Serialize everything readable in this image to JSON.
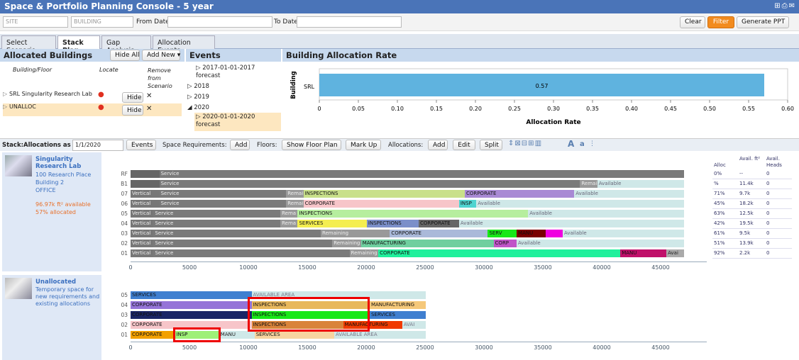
{
  "window": {
    "title": "Space & Portfolio Planning Console - 5 year"
  },
  "filters": {
    "site_placeholder": "SITE",
    "building_placeholder": "BUILDING",
    "from_label": "From Date:",
    "to_label": "To Date:",
    "clear": "Clear",
    "filter": "Filter",
    "ppt": "Generate PPT"
  },
  "tabs": [
    "Select Scenario",
    "Stack Plan",
    "Gap Analysis",
    "Allocation Events"
  ],
  "allocated": {
    "title": "Allocated Buildings",
    "hide_all": "Hide All",
    "add_new": "Add New ▾",
    "col_building": "Building/Floor",
    "col_locate": "Locate",
    "col_remove": "Remove from Scenario",
    "rows": [
      {
        "name": "SRL Singularity Research Lab",
        "hide": "Hide"
      },
      {
        "name": "UNALLOC",
        "hide": "Hide"
      }
    ]
  },
  "events": {
    "title": "Events",
    "items": [
      "2017-01-01-2017 forecast",
      "2018",
      "2019",
      "2020",
      "2020-01-01-2020 forecast"
    ]
  },
  "rate": {
    "title": "Building Allocation Rate",
    "ylabel": "Building",
    "xlabel": "Allocation Rate",
    "category": "SRL",
    "value_label": "0.57",
    "ticks": [
      "0",
      "0.05",
      "0.10",
      "0.15",
      "0.20",
      "0.25",
      "0.30",
      "0.35",
      "0.40",
      "0.45",
      "0.50",
      "0.55",
      "0.60"
    ]
  },
  "chart_data": {
    "type": "bar",
    "categories": [
      "SRL"
    ],
    "values": [
      0.57
    ],
    "title": "Building Allocation Rate",
    "xlabel": "Allocation Rate",
    "ylabel": "Building",
    "xlim": [
      0,
      0.6
    ]
  },
  "stackbar": {
    "label": "Stack:Allocations as of:",
    "date": "1/1/2020",
    "events": "Events",
    "space_req": "Space Requirements:",
    "add": "Add",
    "floors": "Floors:",
    "show_floor_plan": "Show Floor Plan",
    "mark_up": "Mark Up",
    "allocations": "Allocations:",
    "alloc_add": "Add",
    "edit": "Edit",
    "split": "Split",
    "font_a_big": "A",
    "font_a_small": "a"
  },
  "srl": {
    "name": "Singularity Research Lab",
    "address1": "100 Research Place",
    "address2": "Building 2",
    "type": "OFFICE",
    "available": "96.97k ft² available",
    "allocated": "57% allocated"
  },
  "unalloc": {
    "name": "Unallocated",
    "desc": "Temporary space for new requirements and existing allocations"
  },
  "axis_ticks": [
    "0",
    "5000",
    "10000",
    "15000",
    "20000",
    "25000",
    "30000",
    "35000",
    "40000",
    "45000"
  ],
  "axis_ticks_u": [
    "0",
    "5000",
    "10000",
    "15000",
    "20000",
    "25000",
    "30000",
    "35000",
    "40000",
    "45000"
  ],
  "right_headers": {
    "alloc": "Alloc",
    "avail_ft": "Avail. ft²",
    "avail_heads": "Avail. Heads"
  },
  "right_rows": [
    [
      "0%",
      "--",
      "0"
    ],
    [
      "%",
      "11.4k",
      "0"
    ],
    [
      "71%",
      "9.7k",
      "0"
    ],
    [
      "45%",
      "18.2k",
      "0"
    ],
    [
      "63%",
      "12.5k",
      "0"
    ],
    [
      "42%",
      "19.5k",
      "0"
    ],
    [
      "61%",
      "9.5k",
      "0"
    ],
    [
      "51%",
      "13.9k",
      "0"
    ],
    [
      "92%",
      "2.2k",
      "0"
    ]
  ],
  "floors": [
    {
      "label": "RF",
      "segs": [
        [
          "#666",
          "",
          0,
          5,
          "#fff"
        ],
        [
          "#7a7a7a",
          "Service",
          5,
          96,
          "#eee"
        ]
      ]
    },
    {
      "label": "B1",
      "segs": [
        [
          "#666",
          "",
          0,
          5,
          "#fff"
        ],
        [
          "#7a7a7a",
          "Service",
          5,
          78,
          "#eee"
        ],
        [
          "#999",
          "Remai",
          78,
          81,
          "#eee"
        ],
        [
          "#cfe8e8",
          "Available",
          81,
          96,
          "#667"
        ]
      ]
    },
    {
      "label": "07",
      "segs": [
        [
          "#777",
          "Vertical",
          0,
          5,
          "#eee"
        ],
        [
          "#7a7a7a",
          "Service",
          5,
          27,
          "#eee"
        ],
        [
          "#999",
          "Remai",
          27,
          30,
          "#eee"
        ],
        [
          "#c9e08a",
          "INSPECTIONS",
          30,
          58,
          "#111"
        ],
        [
          "#a889d4",
          "CORPORATE",
          58,
          77,
          "#111"
        ],
        [
          "#cfe8e8",
          "Available",
          77,
          96,
          "#667"
        ]
      ]
    },
    {
      "label": "06",
      "segs": [
        [
          "#777",
          "Vertical",
          0,
          5,
          "#eee"
        ],
        [
          "#7a7a7a",
          "Service",
          5,
          27,
          "#eee"
        ],
        [
          "#999",
          "Remai",
          27,
          30,
          "#eee"
        ],
        [
          "#f7c5c9",
          "CORPORATE",
          30,
          57,
          "#111"
        ],
        [
          "#4fd4d0",
          "INSP",
          57,
          60,
          "#111"
        ],
        [
          "#cfe8e8",
          "Available",
          60,
          96,
          "#667"
        ]
      ]
    },
    {
      "label": "05",
      "segs": [
        [
          "#777",
          "Vertical",
          0,
          4,
          "#eee"
        ],
        [
          "#7a7a7a",
          "Service",
          4,
          26,
          "#eee"
        ],
        [
          "#999",
          "Rema",
          26,
          29,
          "#eee"
        ],
        [
          "#b6ee9e",
          "INSPECTIONS",
          29,
          69,
          "#111"
        ],
        [
          "#cfe8e8",
          "Available",
          69,
          96,
          "#667"
        ]
      ]
    },
    {
      "label": "04",
      "segs": [
        [
          "#777",
          "Vertical",
          0,
          4,
          "#eee"
        ],
        [
          "#7a7a7a",
          "Service",
          4,
          26,
          "#eee"
        ],
        [
          "#999",
          "Rema",
          26,
          29,
          "#eee"
        ],
        [
          "#f4ee50",
          "SERVICES",
          29,
          41,
          "#111"
        ],
        [
          "#7b8fc9",
          "INSPECTIONS",
          41,
          50,
          "#111"
        ],
        [
          "#666",
          "CORPORATE",
          50,
          57,
          "#111"
        ],
        [
          "#cfe8e8",
          "Available",
          57,
          96,
          "#667"
        ]
      ]
    },
    {
      "label": "03",
      "segs": [
        [
          "#777",
          "Vertical",
          0,
          4,
          "#eee"
        ],
        [
          "#7a7a7a",
          "Service",
          4,
          33,
          "#eee"
        ],
        [
          "#999",
          "Remaining",
          33,
          45,
          "#eee"
        ],
        [
          "#aab9d9",
          "CORPORATE",
          45,
          62,
          "#111"
        ],
        [
          "#18e818",
          "SERV",
          62,
          67,
          "#111"
        ],
        [
          "#7a0000",
          "MANU",
          67,
          72,
          "#111"
        ],
        [
          "#f000e0",
          "",
          72,
          75,
          "#111"
        ],
        [
          "#cfe8e8",
          "Available",
          75,
          96,
          "#667"
        ]
      ]
    },
    {
      "label": "02",
      "segs": [
        [
          "#777",
          "Vertical",
          0,
          4,
          "#eee"
        ],
        [
          "#7a7a7a",
          "Service",
          4,
          35,
          "#eee"
        ],
        [
          "#999",
          "Remaining",
          35,
          40,
          "#eee"
        ],
        [
          "#6fcf9f",
          "MANUFACTURING",
          40,
          63,
          "#111"
        ],
        [
          "#c054c8",
          "CORP",
          63,
          67,
          "#111"
        ],
        [
          "#cfe8e8",
          "Available",
          67,
          96,
          "#667"
        ]
      ]
    },
    {
      "label": "01",
      "segs": [
        [
          "#777",
          "Vertical",
          0,
          4,
          "#eee"
        ],
        [
          "#7a7a7a",
          "Service",
          4,
          38,
          "#eee"
        ],
        [
          "#999",
          "Remaining",
          38,
          43,
          "#eee"
        ],
        [
          "#20f09c",
          "CORPORATE",
          43,
          85,
          "#111"
        ],
        [
          "#c0106a",
          "MANU",
          85,
          93,
          "#111"
        ],
        [
          "#aaa",
          "Avai",
          93,
          96,
          "#222"
        ]
      ]
    }
  ],
  "unalloc_floors": [
    {
      "label": "05",
      "segs": [
        [
          "#3f7fd0",
          "SERVICES",
          0,
          41,
          "#111"
        ],
        [
          "#cfe8e8",
          "AVAILABLE AREA",
          41,
          100,
          "#778"
        ]
      ]
    },
    {
      "label": "04",
      "segs": [
        [
          "#9574d8",
          "CORPORATE",
          0,
          41,
          "#111"
        ],
        [
          "#e8b85c",
          "INSPECTIONS",
          41,
          81,
          "#111"
        ],
        [
          "#f5c87a",
          "MANUFACTURING",
          81,
          100,
          "#111"
        ]
      ]
    },
    {
      "label": "03",
      "segs": [
        [
          "#1a2566",
          "CORPORATE",
          0,
          41,
          "#111"
        ],
        [
          "#18e818",
          "INSPECTIONS",
          41,
          81,
          "#111"
        ],
        [
          "#3f7fd0",
          "SERVICES",
          81,
          100,
          "#111"
        ]
      ]
    },
    {
      "label": "02",
      "segs": [
        [
          "#f7c5c9",
          "CORPORATE",
          0,
          41,
          "#111"
        ],
        [
          "#d9833a",
          "INSPECTIONS",
          41,
          72,
          "#111"
        ],
        [
          "#f03a00",
          "MANUFACTURING",
          72,
          92,
          "#111"
        ],
        [
          "#cfe8e8",
          "AVAI",
          92,
          100,
          "#778"
        ]
      ]
    },
    {
      "label": "01",
      "segs": [
        [
          "#f2a000",
          "CORPORATE",
          0,
          15,
          "#111"
        ],
        [
          "#9ef078",
          "INSP",
          15,
          30,
          "#111"
        ],
        [
          "#cfe8e8",
          "MANU",
          30,
          42,
          "#222"
        ],
        [
          "#f7d5a0",
          "SERVICES",
          42,
          69,
          "#111"
        ],
        [
          "#cfe8e8",
          "AVAILABLE AREA",
          69,
          100,
          "#778"
        ]
      ]
    }
  ]
}
